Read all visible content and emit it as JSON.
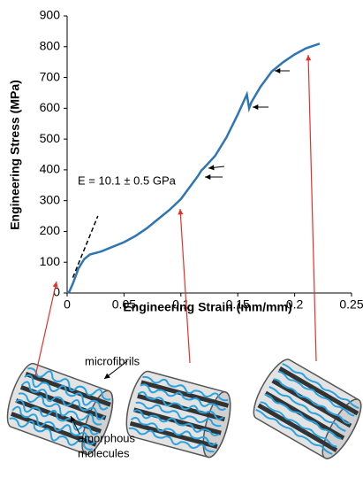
{
  "chart_data": {
    "type": "line",
    "xlabel": "Engineering Strain (mm/mm)",
    "ylabel": "Engineering Stress (MPa)",
    "annotation": "E = 10.1 ± 0.5 GPa",
    "xlim": [
      0,
      0.25
    ],
    "xticks": [
      0,
      0.05,
      0.1,
      0.15,
      0.2,
      0.25
    ],
    "ylim": [
      0,
      900
    ],
    "yticks": [
      0,
      100,
      200,
      300,
      400,
      500,
      600,
      700,
      800,
      900
    ],
    "grid": false,
    "series": [
      {
        "color": "#2e75b6",
        "dash": false,
        "x": [
          0,
          0.002,
          0.005,
          0.01,
          0.015,
          0.02,
          0.03,
          0.04,
          0.05,
          0.06,
          0.07,
          0.08,
          0.09,
          0.1,
          0.11,
          0.115,
          0.118,
          0.12,
          0.13,
          0.14,
          0.15,
          0.158,
          0.16,
          0.162,
          0.17,
          0.18,
          0.19,
          0.2,
          0.21,
          0.222
        ],
        "values": [
          0,
          5,
          30,
          80,
          110,
          125,
          135,
          150,
          165,
          185,
          210,
          240,
          270,
          305,
          355,
          380,
          398,
          405,
          445,
          505,
          580,
          645,
          600,
          620,
          670,
          720,
          750,
          775,
          795,
          810
        ]
      },
      {
        "color": "#000000",
        "dash": true,
        "x": [
          0.005,
          0.027
        ],
        "values": [
          50,
          250
        ]
      }
    ]
  },
  "illustration": {
    "fibril_label": "microfibrils",
    "molecule_label": [
      "amorphous",
      "molecules"
    ]
  }
}
